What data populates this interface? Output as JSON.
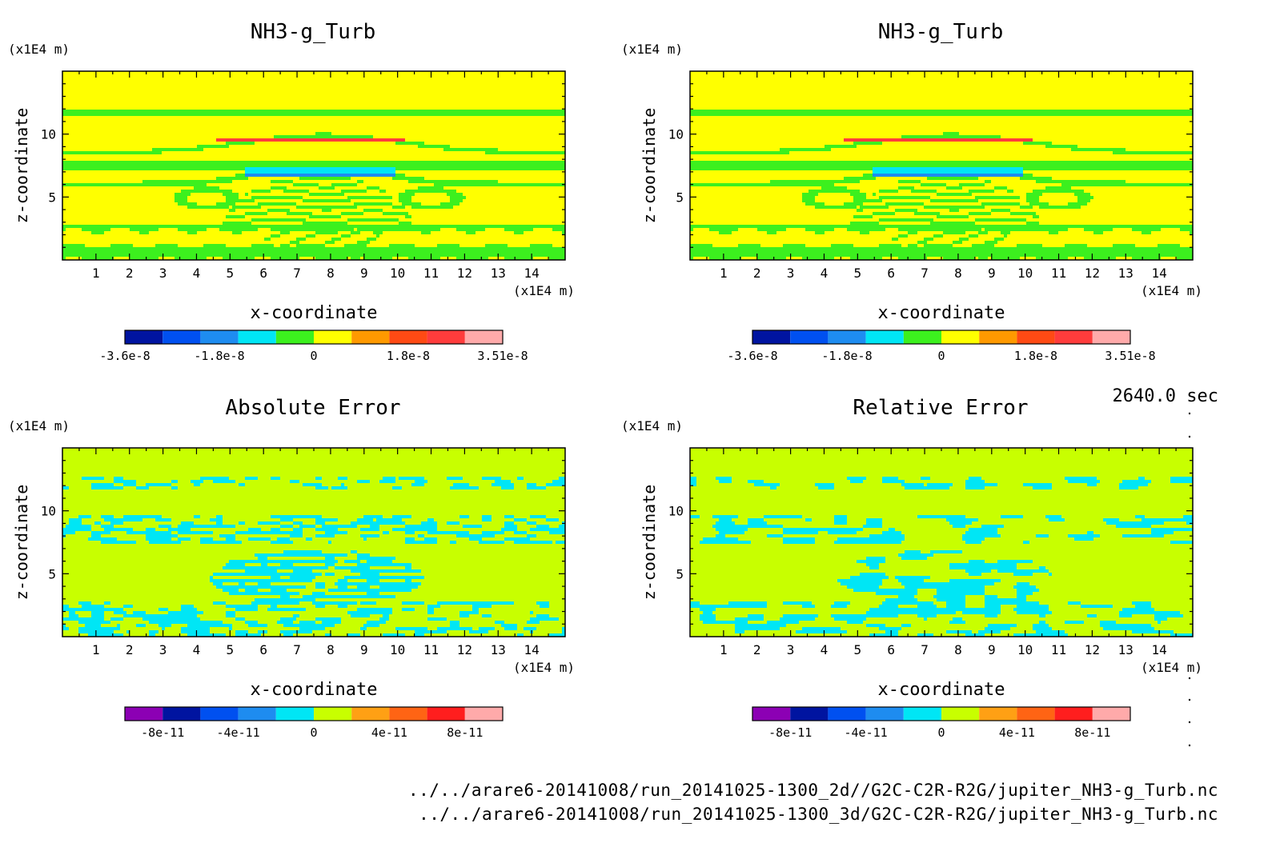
{
  "time_label": "2640.0 sec",
  "footer": {
    "line1": "../../arare6-20141008/run_20141025-1300_2d//G2C-C2R-R2G/jupiter_NH3-g_Turb.nc",
    "line2": "../../arare6-20141008/run_20141025-1300_3d/G2C-C2R-R2G/jupiter_NH3-g_Turb.nc"
  },
  "chart_data": [
    {
      "type": "heatmap",
      "title": "NH3-g_Turb",
      "xlabel": "x-coordinate",
      "ylabel": "z-coordinate",
      "x_unit": "(x1E4 m)",
      "y_unit": "(x1E4 m)",
      "xlim": [
        0,
        15
      ],
      "ylim": [
        0,
        15
      ],
      "x_ticks": [
        "1",
        "2",
        "3",
        "4",
        "5",
        "6",
        "7",
        "8",
        "9",
        "10",
        "11",
        "12",
        "13",
        "14"
      ],
      "y_ticks": [
        "5",
        "10"
      ],
      "field": "turb",
      "colorbar": {
        "colors": [
          "#0014a0",
          "#0050f0",
          "#1e8cf0",
          "#00e6f5",
          "#3cf01e",
          "#ffff00",
          "#ff9900",
          "#ff4a14",
          "#ff3c3c",
          "#ffaaaa"
        ],
        "tick_labels": [
          "-3.6e-8",
          "-1.8e-8",
          "0",
          "1.8e-8",
          "3.51e-8"
        ]
      }
    },
    {
      "type": "heatmap",
      "title": "NH3-g_Turb",
      "xlabel": "x-coordinate",
      "ylabel": "z-coordinate",
      "x_unit": "(x1E4 m)",
      "y_unit": "(x1E4 m)",
      "xlim": [
        0,
        15
      ],
      "ylim": [
        0,
        15
      ],
      "x_ticks": [
        "1",
        "2",
        "3",
        "4",
        "5",
        "6",
        "7",
        "8",
        "9",
        "10",
        "11",
        "12",
        "13",
        "14"
      ],
      "y_ticks": [
        "5",
        "10"
      ],
      "field": "turb",
      "colorbar": {
        "colors": [
          "#0014a0",
          "#0050f0",
          "#1e8cf0",
          "#00e6f5",
          "#3cf01e",
          "#ffff00",
          "#ff9900",
          "#ff4a14",
          "#ff3c3c",
          "#ffaaaa"
        ],
        "tick_labels": [
          "-3.6e-8",
          "-1.8e-8",
          "0",
          "1.8e-8",
          "3.51e-8"
        ]
      }
    },
    {
      "type": "heatmap",
      "title": "Absolute Error",
      "xlabel": "x-coordinate",
      "ylabel": "z-coordinate",
      "x_unit": "(x1E4 m)",
      "y_unit": "(x1E4 m)",
      "xlim": [
        0,
        15
      ],
      "ylim": [
        0,
        15
      ],
      "x_ticks": [
        "1",
        "2",
        "3",
        "4",
        "5",
        "6",
        "7",
        "8",
        "9",
        "10",
        "11",
        "12",
        "13",
        "14"
      ],
      "y_ticks": [
        "5",
        "10"
      ],
      "field": "abs_err",
      "colorbar": {
        "colors": [
          "#8c00b4",
          "#0014a0",
          "#0050f0",
          "#1e8cf0",
          "#00e6f5",
          "#c8ff00",
          "#ffa014",
          "#ff6414",
          "#ff1e1e",
          "#ffaaaa"
        ],
        "tick_labels": [
          "-8e-11",
          "-4e-11",
          "0",
          "4e-11",
          "8e-11"
        ]
      }
    },
    {
      "type": "heatmap",
      "title": "Relative Error",
      "xlabel": "x-coordinate",
      "ylabel": "z-coordinate",
      "x_unit": "(x1E4 m)",
      "y_unit": "(x1E4 m)",
      "xlim": [
        0,
        15
      ],
      "ylim": [
        0,
        15
      ],
      "x_ticks": [
        "1",
        "2",
        "3",
        "4",
        "5",
        "6",
        "7",
        "8",
        "9",
        "10",
        "11",
        "12",
        "13",
        "14"
      ],
      "y_ticks": [
        "5",
        "10"
      ],
      "field": "rel_err",
      "colorbar": {
        "colors": [
          "#8c00b4",
          "#0014a0",
          "#0050f0",
          "#1e8cf0",
          "#00e6f5",
          "#c8ff00",
          "#ffa014",
          "#ff6414",
          "#ff1e1e",
          "#ffaaaa"
        ],
        "tick_labels": [
          "-8e-11",
          "-4e-11",
          "0",
          "4e-11",
          "8e-11"
        ]
      }
    }
  ]
}
